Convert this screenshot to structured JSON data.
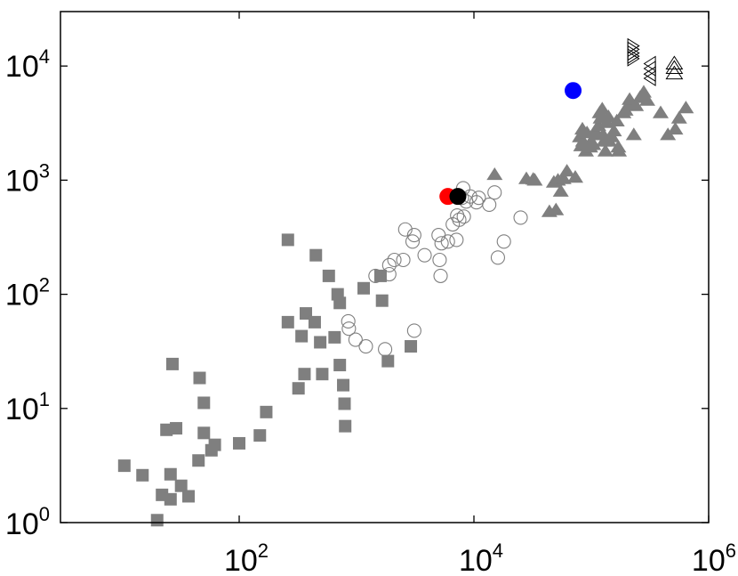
{
  "chart_data": {
    "type": "scatter",
    "title": "",
    "xlabel": "",
    "ylabel": "",
    "xscale": "log",
    "yscale": "log",
    "xlim": [
      3,
      1000000
    ],
    "ylim": [
      1,
      30000
    ],
    "grid": false,
    "legend": "none",
    "x_ticks": [
      {
        "value": 100,
        "base": "10",
        "exp": "2"
      },
      {
        "value": 10000,
        "base": "10",
        "exp": "4"
      },
      {
        "value": 1000000,
        "base": "10",
        "exp": "6"
      }
    ],
    "y_ticks": [
      {
        "value": 1,
        "base": "10",
        "exp": "0"
      },
      {
        "value": 10,
        "base": "10",
        "exp": "1"
      },
      {
        "value": 100,
        "base": "10",
        "exp": "2"
      },
      {
        "value": 1000,
        "base": "10",
        "exp": "3"
      },
      {
        "value": 10000,
        "base": "10",
        "exp": "4"
      }
    ],
    "series": [
      {
        "marker": "square",
        "color": "#7f7f7f",
        "filled": true,
        "points": [
          [
            10.5,
            3.15
          ],
          [
            15,
            2.6
          ],
          [
            20,
            1.05
          ],
          [
            22,
            1.75
          ],
          [
            24,
            6.5
          ],
          [
            26,
            1.6
          ],
          [
            26,
            2.65
          ],
          [
            27,
            24.5
          ],
          [
            29,
            6.7
          ],
          [
            32,
            2.1
          ],
          [
            37,
            1.7
          ],
          [
            45,
            3.5
          ],
          [
            46,
            18.5
          ],
          [
            50,
            11.2
          ],
          [
            50,
            6.1
          ],
          [
            58,
            4.3
          ],
          [
            62,
            4.8
          ],
          [
            100,
            4.95
          ],
          [
            150,
            5.8
          ],
          [
            170,
            9.3
          ],
          [
            260,
            300
          ],
          [
            260,
            57
          ],
          [
            320,
            15
          ],
          [
            340,
            43
          ],
          [
            360,
            20
          ],
          [
            370,
            68
          ],
          [
            440,
            57
          ],
          [
            450,
            220
          ],
          [
            490,
            38
          ],
          [
            510,
            20
          ],
          [
            580,
            145
          ],
          [
            650,
            42
          ],
          [
            690,
            100
          ],
          [
            720,
            84
          ],
          [
            720,
            24
          ],
          [
            770,
            16
          ],
          [
            790,
            11
          ],
          [
            800,
            7
          ],
          [
            1150,
            113
          ],
          [
            1600,
            145
          ],
          [
            1650,
            88
          ],
          [
            1850,
            26
          ],
          [
            2900,
            35
          ]
        ]
      },
      {
        "marker": "circle",
        "color": "#7f7f7f",
        "filled": false,
        "points": [
          [
            850,
            58
          ],
          [
            860,
            50
          ],
          [
            980,
            40
          ],
          [
            1200,
            35
          ],
          [
            1450,
            145
          ],
          [
            1750,
            33
          ],
          [
            1900,
            150
          ],
          [
            1900,
            180
          ],
          [
            2100,
            200
          ],
          [
            2500,
            200
          ],
          [
            2600,
            370
          ],
          [
            3000,
            290
          ],
          [
            3100,
            330
          ],
          [
            3100,
            48
          ],
          [
            3800,
            220
          ],
          [
            5000,
            330
          ],
          [
            5100,
            200
          ],
          [
            5200,
            145
          ],
          [
            5300,
            280
          ],
          [
            6000,
            290
          ],
          [
            6600,
            410
          ],
          [
            7100,
            300
          ],
          [
            7200,
            490
          ],
          [
            7500,
            450
          ],
          [
            7900,
            700
          ],
          [
            8100,
            850
          ],
          [
            8200,
            480
          ],
          [
            8600,
            650
          ],
          [
            9300,
            720
          ],
          [
            10500,
            640
          ],
          [
            11000,
            700
          ],
          [
            13500,
            610
          ],
          [
            15000,
            780
          ],
          [
            16000,
            210
          ],
          [
            18000,
            290
          ],
          [
            25000,
            470
          ]
        ]
      },
      {
        "marker": "triangle-up",
        "color": "#7f7f7f",
        "filled": true,
        "points": [
          [
            15000,
            1120
          ],
          [
            28000,
            1030
          ],
          [
            32000,
            1020
          ],
          [
            33000,
            1000
          ],
          [
            44000,
            530
          ],
          [
            48000,
            960
          ],
          [
            50000,
            550
          ],
          [
            52000,
            1000
          ],
          [
            55000,
            800
          ],
          [
            58000,
            1030
          ],
          [
            62000,
            1200
          ],
          [
            73000,
            1060
          ],
          [
            80000,
            2400
          ],
          [
            82000,
            2000
          ],
          [
            84000,
            2800
          ],
          [
            85000,
            2200
          ],
          [
            90000,
            1800
          ],
          [
            92000,
            2600
          ],
          [
            98000,
            1950
          ],
          [
            100000,
            2200
          ],
          [
            104000,
            2050
          ],
          [
            108000,
            2700
          ],
          [
            110000,
            2500
          ],
          [
            115000,
            3000
          ],
          [
            118000,
            3900
          ],
          [
            120000,
            3500
          ],
          [
            124000,
            4200
          ],
          [
            126000,
            2500
          ],
          [
            128000,
            2200
          ],
          [
            132000,
            1800
          ],
          [
            136000,
            3200
          ],
          [
            140000,
            3600
          ],
          [
            142000,
            2200
          ],
          [
            150000,
            2400
          ],
          [
            156000,
            2700
          ],
          [
            165000,
            3300
          ],
          [
            170000,
            1950
          ],
          [
            172000,
            1800
          ],
          [
            188000,
            3900
          ],
          [
            196000,
            4100
          ],
          [
            208000,
            4600
          ],
          [
            212000,
            5100
          ],
          [
            230000,
            2500
          ],
          [
            240000,
            4500
          ],
          [
            260000,
            5300
          ],
          [
            280000,
            5900
          ],
          [
            300000,
            5000
          ],
          [
            390000,
            3900
          ],
          [
            450000,
            2500
          ],
          [
            520000,
            2800
          ],
          [
            560000,
            3500
          ],
          [
            640000,
            4300
          ]
        ]
      },
      {
        "marker": "triangle-right",
        "color": "#000000",
        "filled": false,
        "points": [
          [
            225000,
            15000
          ],
          [
            225000,
            14000
          ],
          [
            225000,
            13000
          ],
          [
            225000,
            12200
          ],
          [
            225000,
            11600
          ]
        ]
      },
      {
        "marker": "triangle-left",
        "color": "#000000",
        "filled": false,
        "points": [
          [
            320000,
            10500
          ],
          [
            320000,
            9500
          ],
          [
            320000,
            8500
          ],
          [
            320000,
            7800
          ]
        ]
      },
      {
        "marker": "triangle-up",
        "color": "#000000",
        "filled": false,
        "points": [
          [
            510000,
            10500
          ],
          [
            510000,
            9600
          ],
          [
            510000,
            8600
          ]
        ]
      },
      {
        "marker": "circle-large",
        "color": "#ff0000",
        "filled": true,
        "points": [
          [
            6000,
            720
          ]
        ]
      },
      {
        "marker": "circle-large",
        "color": "#000000",
        "filled": true,
        "points": [
          [
            7300,
            720
          ]
        ]
      },
      {
        "marker": "circle-large",
        "color": "#0000ff",
        "filled": true,
        "points": [
          [
            70000,
            6100
          ]
        ]
      }
    ]
  }
}
